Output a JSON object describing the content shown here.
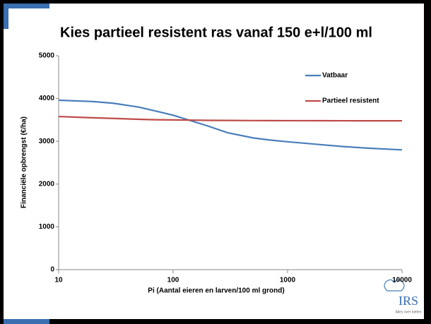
{
  "chart_data": {
    "type": "line",
    "title": "Kies partieel resistent ras vanaf 150 e+l/100 ml",
    "xlabel": "Pi (Aantal eieren en larven/100 ml grond)",
    "ylabel": "Financiële opbrengst (€/ha)",
    "x": [
      10,
      20,
      30,
      50,
      70,
      100,
      150,
      200,
      300,
      500,
      700,
      1000,
      2000,
      3000,
      5000,
      10000
    ],
    "series": [
      {
        "name": "Vatbaar",
        "color": "#4a7ebb",
        "values": [
          3960,
          3930,
          3890,
          3800,
          3710,
          3610,
          3465,
          3360,
          3200,
          3080,
          3030,
          2990,
          2920,
          2880,
          2840,
          2800
        ]
      },
      {
        "name": "Partieel resistent",
        "color": "#be4b48",
        "values": [
          3580,
          3550,
          3535,
          3515,
          3505,
          3500,
          3495,
          3490,
          3488,
          3485,
          3484,
          3483,
          3482,
          3481,
          3480,
          3480
        ]
      }
    ],
    "xlim": [
      10,
      10000
    ],
    "xticks": [
      10,
      100,
      1000,
      10000
    ],
    "xscale": "log",
    "ylim": [
      0,
      5000
    ],
    "yticks": [
      0,
      1000,
      2000,
      3000,
      4000,
      5000
    ],
    "grid": false,
    "legend": "upper right"
  },
  "logo": {
    "name": "IRS",
    "tagline": "Alles over bieten"
  }
}
